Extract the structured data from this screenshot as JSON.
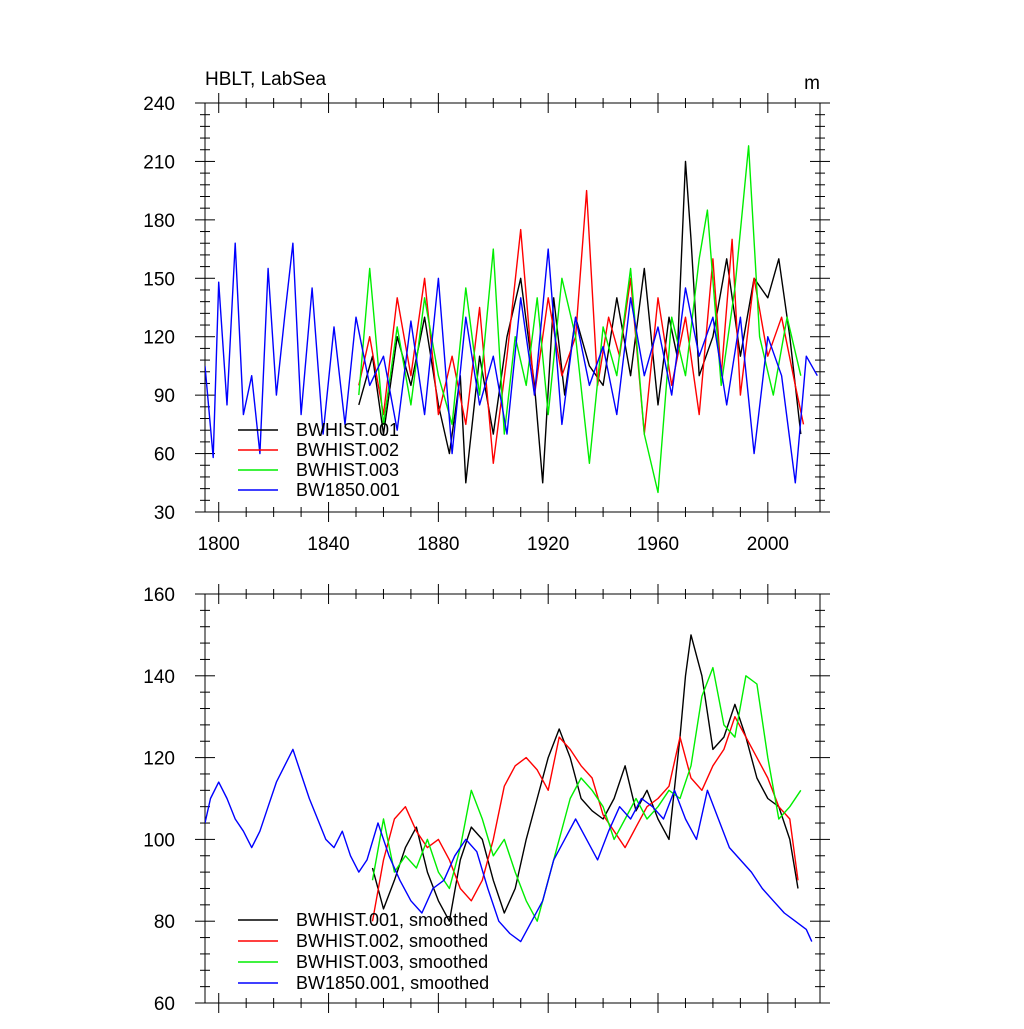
{
  "chart_data": [
    {
      "type": "line",
      "title": "HBLT, LabSea",
      "units": "m",
      "xlabel": "",
      "ylabel": "",
      "xlim": [
        1795,
        2019
      ],
      "ylim": [
        30,
        240
      ],
      "x_ticks": [
        1800,
        1840,
        1880,
        1920,
        1960,
        2000
      ],
      "y_ticks": [
        30,
        60,
        90,
        120,
        150,
        180,
        210,
        240
      ],
      "x_tick_labels": [
        "1800",
        "1840",
        "1880",
        "1920",
        "1960",
        "2000"
      ],
      "y_tick_labels": [
        "30",
        "60",
        "90",
        "120",
        "150",
        "180",
        "210",
        "240"
      ],
      "legend": "bottom-left",
      "series": [
        {
          "name": "BWHIST.001",
          "color": "#000000",
          "x": [
            1851,
            1856,
            1860,
            1865,
            1870,
            1875,
            1880,
            1884,
            1888,
            1890,
            1895,
            1900,
            1905,
            1910,
            1915,
            1918,
            1922,
            1926,
            1930,
            1935,
            1940,
            1945,
            1950,
            1955,
            1960,
            1964,
            1967,
            1970,
            1972,
            1975,
            1980,
            1985,
            1990,
            1995,
            2000,
            2004,
            2008,
            2012
          ],
          "values": [
            85,
            110,
            70,
            120,
            95,
            130,
            85,
            60,
            100,
            45,
            110,
            70,
            120,
            150,
            95,
            45,
            140,
            90,
            130,
            105,
            95,
            140,
            100,
            155,
            85,
            130,
            110,
            210,
            170,
            100,
            120,
            160,
            110,
            150,
            140,
            160,
            120,
            70
          ]
        },
        {
          "name": "BWHIST.002",
          "color": "#ff0000",
          "x": [
            1851,
            1855,
            1860,
            1865,
            1870,
            1875,
            1880,
            1885,
            1890,
            1895,
            1900,
            1905,
            1910,
            1915,
            1920,
            1925,
            1930,
            1934,
            1938,
            1942,
            1946,
            1950,
            1955,
            1960,
            1965,
            1970,
            1975,
            1980,
            1983,
            1987,
            1990,
            1995,
            2000,
            2005,
            2010,
            2013
          ],
          "values": [
            95,
            120,
            80,
            140,
            100,
            150,
            80,
            110,
            75,
            135,
            55,
            110,
            175,
            90,
            140,
            100,
            120,
            195,
            95,
            130,
            110,
            150,
            70,
            140,
            95,
            130,
            80,
            160,
            100,
            170,
            90,
            150,
            110,
            130,
            95,
            75
          ]
        },
        {
          "name": "BWHIST.003",
          "color": "#00ee00",
          "x": [
            1851,
            1855,
            1860,
            1865,
            1870,
            1875,
            1880,
            1885,
            1890,
            1895,
            1900,
            1904,
            1908,
            1912,
            1916,
            1920,
            1925,
            1930,
            1935,
            1940,
            1945,
            1950,
            1955,
            1960,
            1965,
            1970,
            1975,
            1978,
            1983,
            1988,
            1993,
            1997,
            2002,
            2007,
            2012
          ],
          "values": [
            90,
            155,
            75,
            125,
            85,
            140,
            100,
            75,
            145,
            90,
            165,
            70,
            120,
            95,
            140,
            80,
            150,
            120,
            55,
            125,
            100,
            155,
            70,
            40,
            130,
            100,
            160,
            185,
            95,
            145,
            218,
            120,
            90,
            130,
            100
          ]
        },
        {
          "name": "BW1850.001",
          "color": "#0000ff",
          "x": [
            1795,
            1798,
            1800,
            1803,
            1806,
            1809,
            1812,
            1815,
            1818,
            1821,
            1824,
            1827,
            1830,
            1834,
            1838,
            1842,
            1846,
            1850,
            1855,
            1860,
            1865,
            1870,
            1875,
            1880,
            1885,
            1890,
            1895,
            1900,
            1905,
            1910,
            1915,
            1920,
            1925,
            1930,
            1935,
            1940,
            1945,
            1950,
            1955,
            1960,
            1965,
            1970,
            1975,
            1980,
            1985,
            1990,
            1995,
            2000,
            2005,
            2010,
            2014,
            2018
          ],
          "values": [
            105,
            58,
            148,
            85,
            168,
            80,
            100,
            60,
            155,
            90,
            130,
            168,
            80,
            145,
            70,
            125,
            75,
            130,
            95,
            110,
            72,
            128,
            80,
            150,
            60,
            130,
            85,
            110,
            70,
            140,
            90,
            165,
            75,
            130,
            95,
            115,
            80,
            140,
            100,
            125,
            90,
            145,
            110,
            130,
            85,
            130,
            60,
            120,
            100,
            45,
            110,
            100
          ]
        }
      ]
    },
    {
      "type": "line",
      "title": "",
      "xlabel": "",
      "ylabel": "",
      "xlim": [
        1795,
        2019
      ],
      "ylim": [
        60,
        160
      ],
      "y_ticks": [
        60,
        80,
        100,
        120,
        140,
        160
      ],
      "y_tick_labels": [
        "60",
        "80",
        "100",
        "120",
        "140",
        "160"
      ],
      "legend": "bottom-left",
      "series": [
        {
          "name": "BWHIST.001, smoothed",
          "color": "#000000",
          "x": [
            1856,
            1860,
            1864,
            1868,
            1872,
            1876,
            1880,
            1884,
            1888,
            1892,
            1896,
            1900,
            1904,
            1908,
            1912,
            1916,
            1920,
            1924,
            1928,
            1932,
            1936,
            1940,
            1944,
            1948,
            1952,
            1956,
            1960,
            1964,
            1968,
            1970,
            1972,
            1976,
            1980,
            1984,
            1988,
            1992,
            1996,
            2000,
            2004,
            2008,
            2011
          ],
          "values": [
            93,
            83,
            90,
            98,
            103,
            92,
            85,
            80,
            95,
            103,
            100,
            90,
            82,
            88,
            100,
            110,
            120,
            127,
            120,
            110,
            107,
            105,
            110,
            118,
            107,
            112,
            105,
            100,
            125,
            140,
            150,
            140,
            122,
            125,
            133,
            125,
            115,
            110,
            108,
            100,
            88
          ]
        },
        {
          "name": "BWHIST.002, smoothed",
          "color": "#ff0000",
          "x": [
            1856,
            1860,
            1864,
            1868,
            1872,
            1876,
            1880,
            1884,
            1888,
            1892,
            1896,
            1900,
            1904,
            1908,
            1912,
            1916,
            1920,
            1924,
            1928,
            1932,
            1936,
            1940,
            1944,
            1948,
            1952,
            1956,
            1960,
            1964,
            1968,
            1972,
            1976,
            1980,
            1984,
            1988,
            1992,
            1996,
            2000,
            2004,
            2008,
            2011
          ],
          "values": [
            80,
            95,
            105,
            108,
            102,
            98,
            100,
            95,
            88,
            85,
            90,
            100,
            113,
            118,
            120,
            117,
            112,
            125,
            122,
            118,
            115,
            106,
            102,
            98,
            103,
            108,
            110,
            113,
            125,
            115,
            112,
            118,
            122,
            130,
            125,
            120,
            115,
            108,
            105,
            90
          ]
        },
        {
          "name": "BWHIST.003, smoothed",
          "color": "#00ee00",
          "x": [
            1856,
            1860,
            1864,
            1868,
            1872,
            1876,
            1880,
            1884,
            1888,
            1892,
            1896,
            1900,
            1904,
            1908,
            1912,
            1916,
            1920,
            1924,
            1928,
            1932,
            1936,
            1940,
            1944,
            1948,
            1952,
            1956,
            1960,
            1964,
            1968,
            1972,
            1976,
            1980,
            1984,
            1988,
            1992,
            1996,
            2000,
            2004,
            2008,
            2012
          ],
          "values": [
            90,
            105,
            92,
            96,
            93,
            100,
            92,
            88,
            98,
            112,
            105,
            96,
            100,
            92,
            85,
            80,
            90,
            100,
            110,
            115,
            112,
            108,
            100,
            105,
            110,
            105,
            108,
            112,
            110,
            118,
            135,
            142,
            128,
            125,
            140,
            138,
            120,
            105,
            108,
            112
          ]
        },
        {
          "name": "BW1850.001, smoothed",
          "color": "#0000ff",
          "x": [
            1795,
            1797,
            1800,
            1803,
            1806,
            1809,
            1812,
            1815,
            1818,
            1821,
            1824,
            1827,
            1830,
            1833,
            1836,
            1839,
            1842,
            1845,
            1848,
            1851,
            1854,
            1858,
            1862,
            1866,
            1870,
            1874,
            1878,
            1882,
            1886,
            1890,
            1894,
            1898,
            1902,
            1906,
            1910,
            1914,
            1918,
            1922,
            1926,
            1930,
            1934,
            1938,
            1942,
            1946,
            1950,
            1954,
            1958,
            1962,
            1966,
            1970,
            1974,
            1978,
            1982,
            1986,
            1990,
            1994,
            1998,
            2002,
            2006,
            2010,
            2014,
            2016
          ],
          "values": [
            104,
            110,
            114,
            110,
            105,
            102,
            98,
            102,
            108,
            114,
            118,
            122,
            116,
            110,
            105,
            100,
            98,
            102,
            96,
            92,
            95,
            104,
            96,
            90,
            85,
            82,
            88,
            90,
            96,
            100,
            97,
            88,
            80,
            77,
            75,
            80,
            85,
            95,
            100,
            105,
            100,
            95,
            102,
            108,
            105,
            110,
            108,
            105,
            112,
            105,
            100,
            112,
            105,
            98,
            95,
            92,
            88,
            85,
            82,
            80,
            78,
            75
          ]
        }
      ]
    }
  ]
}
